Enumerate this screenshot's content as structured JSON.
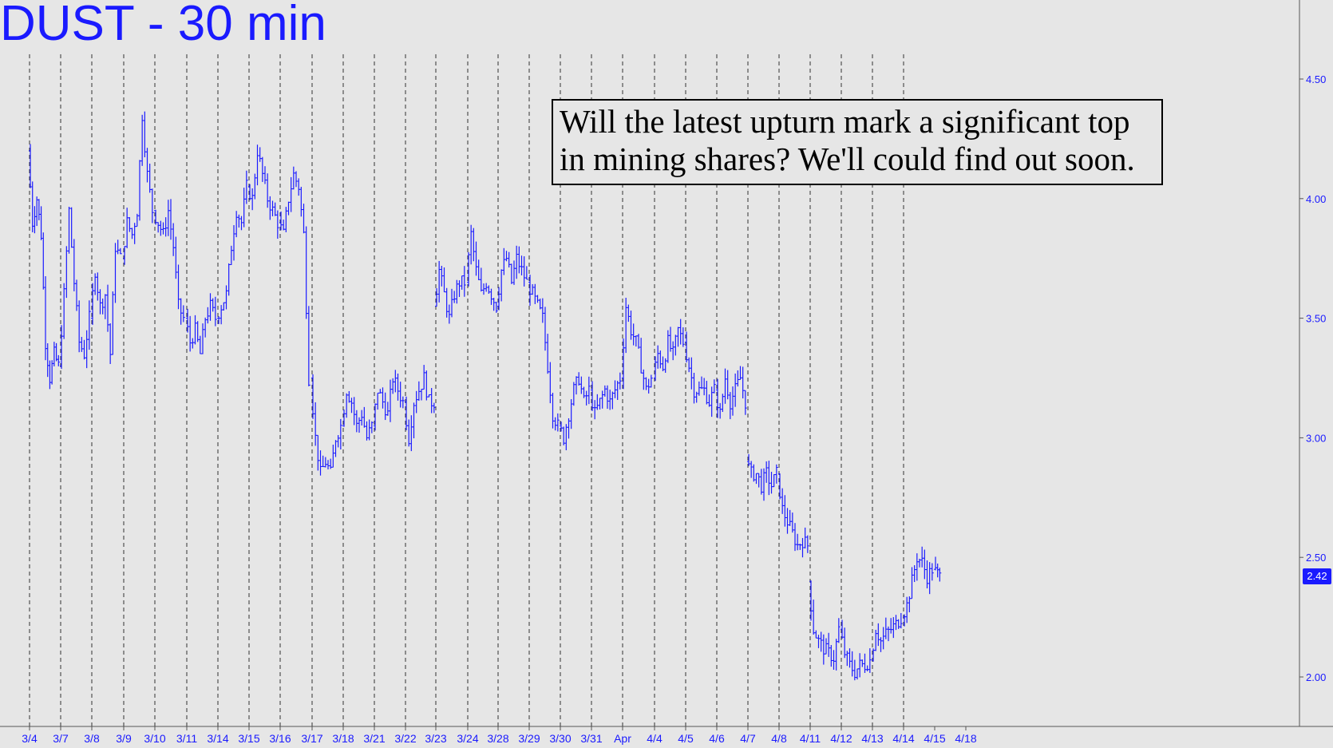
{
  "chart_data": {
    "type": "ohlc-bar",
    "title": "DUST - 30 min",
    "annotation_lines": [
      "Will the latest upturn mark a significant top",
      "in mining shares? We'll could find out soon."
    ],
    "y_ticks": [
      "4.50",
      "4.00",
      "3.50",
      "3.00",
      "2.50",
      "2.00"
    ],
    "ylim": [
      1.85,
      4.83
    ],
    "last_price": "2.42",
    "x_labels": [
      "3/4",
      "3/7",
      "3/8",
      "3/9",
      "3/10",
      "3/11",
      "3/14",
      "3/15",
      "3/16",
      "3/17",
      "3/18",
      "3/21",
      "3/22",
      "3/23",
      "3/24",
      "3/28",
      "3/29",
      "3/30",
      "3/31",
      "Apr",
      "4/4",
      "4/5",
      "4/6",
      "4/7",
      "4/8",
      "4/11",
      "4/12",
      "4/13",
      "4/14",
      "4/15",
      "4/18"
    ],
    "grid": "dashed vertical at each session",
    "series_color": "#1a1aff",
    "sessions": [
      {
        "label": "3/4",
        "path": [
          4.2,
          3.9,
          4.0,
          3.85,
          3.4,
          3.25,
          3.35,
          3.3
        ]
      },
      {
        "label": "3/7",
        "path": [
          3.3,
          3.6,
          3.95,
          3.65,
          3.4,
          3.35,
          3.5
        ]
      },
      {
        "label": "3/8",
        "path": [
          3.5,
          3.7,
          3.55,
          3.6,
          3.35,
          3.8,
          3.75
        ]
      },
      {
        "label": "3/9",
        "path": [
          3.75,
          3.9,
          3.85,
          3.95,
          4.35,
          4.1,
          3.95
        ]
      },
      {
        "label": "3/10",
        "path": [
          3.95,
          3.9,
          3.85,
          3.95,
          3.8,
          3.55,
          3.5
        ]
      },
      {
        "label": "3/11",
        "path": [
          3.5,
          3.4,
          3.45,
          3.35,
          3.5,
          3.55,
          3.5
        ]
      },
      {
        "label": "3/14",
        "path": [
          3.5,
          3.55,
          3.6,
          3.8,
          3.95,
          3.9,
          4.05
        ]
      },
      {
        "label": "3/15",
        "path": [
          4.05,
          4.0,
          4.2,
          4.1,
          4.0,
          3.95,
          3.9
        ]
      },
      {
        "label": "3/16",
        "path": [
          3.9,
          3.85,
          4.0,
          4.1,
          4.05,
          3.85,
          3.25
        ]
      },
      {
        "label": "3/17",
        "path": [
          3.25,
          3.0,
          2.85,
          2.9,
          2.85,
          3.0,
          3.05
        ]
      },
      {
        "label": "3/18",
        "path": [
          3.05,
          3.2,
          3.15,
          3.05,
          3.1,
          3.0,
          3.05
        ]
      },
      {
        "label": "3/21",
        "path": [
          3.05,
          3.2,
          3.15,
          3.1,
          3.25,
          3.2,
          3.15
        ]
      },
      {
        "label": "3/22",
        "path": [
          3.15,
          3.0,
          3.15,
          3.2,
          3.25,
          3.15,
          3.15
        ]
      },
      {
        "label": "3/23",
        "path": [
          3.55,
          3.7,
          3.6,
          3.5,
          3.6,
          3.65,
          3.65
        ]
      },
      {
        "label": "3/24",
        "path": [
          3.65,
          3.85,
          3.7,
          3.6,
          3.65,
          3.6,
          3.55
        ]
      },
      {
        "label": "3/28",
        "path": [
          3.55,
          3.7,
          3.75,
          3.65,
          3.75,
          3.7,
          3.65
        ]
      },
      {
        "label": "3/29",
        "path": [
          3.65,
          3.6,
          3.55,
          3.5,
          3.3,
          3.1,
          3.05
        ]
      },
      {
        "label": "3/30",
        "path": [
          3.05,
          3.0,
          3.1,
          3.2,
          3.25,
          3.15,
          3.2
        ]
      },
      {
        "label": "3/31",
        "path": [
          3.2,
          3.1,
          3.15,
          3.2,
          3.15,
          3.2,
          3.25
        ]
      },
      {
        "label": "Apr",
        "path": [
          3.25,
          3.55,
          3.45,
          3.4,
          3.3,
          3.2,
          3.25
        ]
      },
      {
        "label": "4/4",
        "path": [
          3.25,
          3.35,
          3.3,
          3.4,
          3.35,
          3.45,
          3.4
        ]
      },
      {
        "label": "4/5",
        "path": [
          3.4,
          3.3,
          3.2,
          3.2,
          3.2,
          3.15,
          3.2
        ]
      },
      {
        "label": "4/6",
        "path": [
          3.2,
          3.1,
          3.25,
          3.15,
          3.2,
          3.25,
          3.15
        ]
      },
      {
        "label": "4/7",
        "path": [
          2.9,
          2.85,
          2.85,
          2.8,
          2.85,
          2.8,
          2.85
        ]
      },
      {
        "label": "4/8",
        "path": [
          2.85,
          2.7,
          2.65,
          2.6,
          2.55,
          2.57,
          2.55
        ]
      },
      {
        "label": "4/11",
        "path": [
          2.4,
          2.2,
          2.15,
          2.12,
          2.1,
          2.08,
          2.2
        ]
      },
      {
        "label": "4/12",
        "path": [
          2.2,
          2.1,
          2.05,
          2.02,
          2.05,
          2.05,
          2.07
        ]
      },
      {
        "label": "4/13",
        "path": [
          2.07,
          2.2,
          2.15,
          2.18,
          2.2,
          2.22,
          2.25
        ]
      },
      {
        "label": "4/14",
        "path": [
          2.25,
          2.3,
          2.4,
          2.5,
          2.48,
          2.42,
          2.45
        ]
      },
      {
        "label": "4/15",
        "path": [
          2.45,
          2.42
        ]
      }
    ]
  }
}
